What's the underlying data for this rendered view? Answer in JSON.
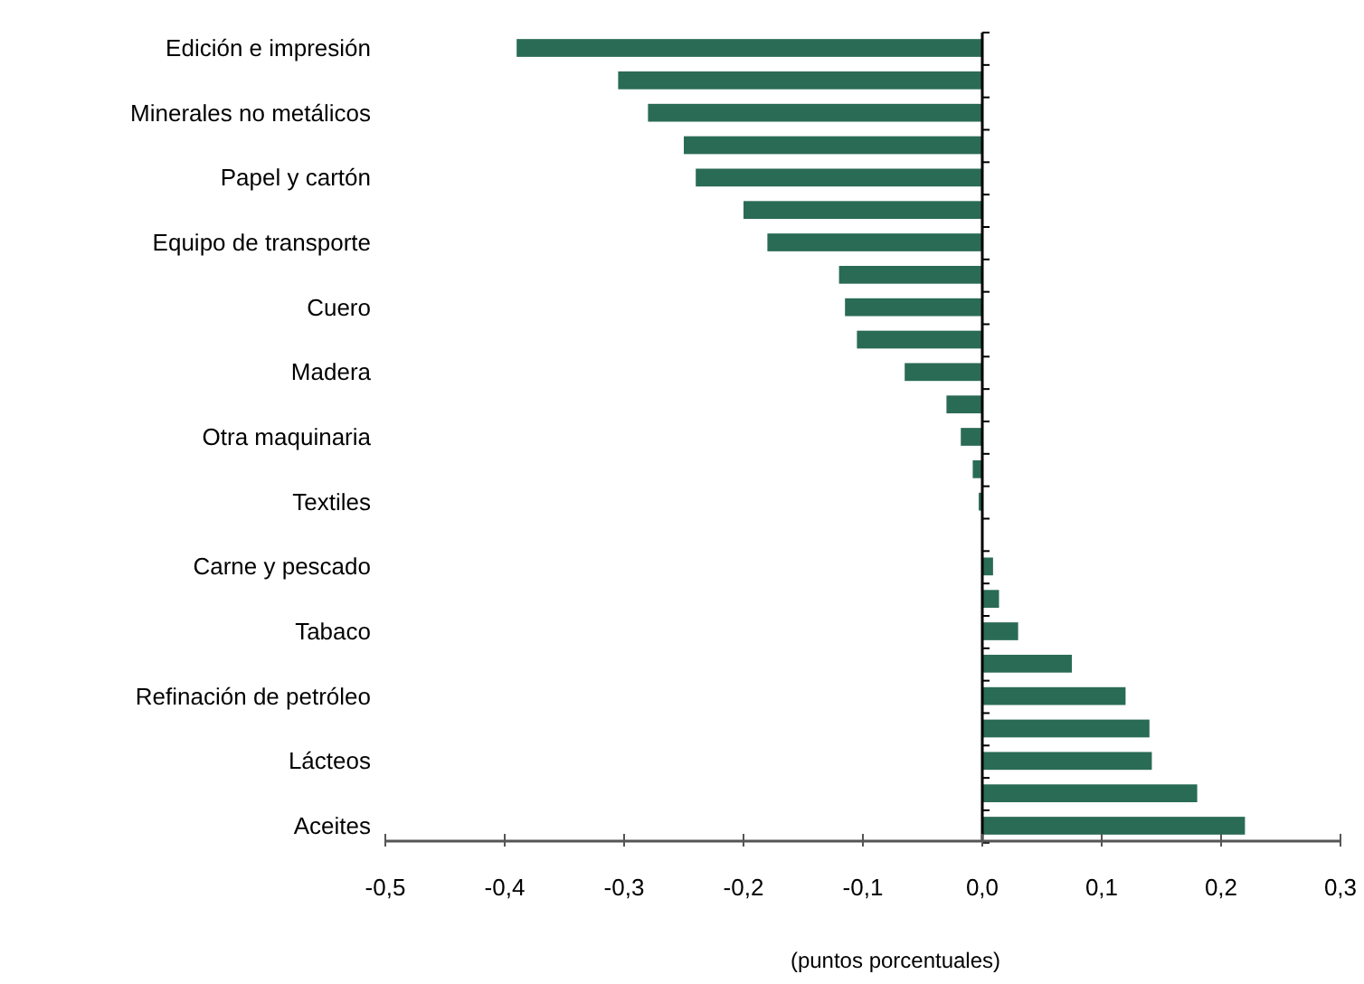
{
  "chart_data": {
    "type": "bar",
    "orientation": "horizontal",
    "xlabel": "(puntos porcentuales)",
    "categories": [
      "Edición e impresión",
      null,
      "Minerales no metálicos",
      null,
      "Papel y cartón",
      null,
      "Equipo de transporte",
      null,
      "Cuero",
      null,
      "Madera",
      null,
      "Otra maquinaria",
      null,
      "Textiles",
      null,
      "Carne y pescado",
      null,
      "Tabaco",
      null,
      "Refinación de petróleo",
      null,
      "Lácteos",
      null,
      "Aceites"
    ],
    "values": [
      -0.39,
      -0.305,
      -0.28,
      -0.25,
      -0.24,
      -0.2,
      -0.18,
      -0.12,
      -0.115,
      -0.105,
      -0.065,
      -0.03,
      -0.018,
      -0.008,
      -0.003,
      0,
      0.009,
      0.014,
      0.03,
      0.075,
      0.12,
      0.14,
      0.142,
      0.18,
      0.22
    ],
    "color": "#2a6b55",
    "xlim": [
      -0.5,
      0.3
    ],
    "xticks": [
      {
        "value": -0.5,
        "label": "-0,5"
      },
      {
        "value": -0.4,
        "label": "-0,4"
      },
      {
        "value": -0.3,
        "label": "-0,3"
      },
      {
        "value": -0.2,
        "label": "-0,2"
      },
      {
        "value": -0.1,
        "label": "-0,1"
      },
      {
        "value": 0,
        "label": "0,0"
      },
      {
        "value": 0.1,
        "label": "0,1"
      },
      {
        "value": 0.2,
        "label": "0,2"
      },
      {
        "value": 0.3,
        "label": "0,3"
      }
    ]
  }
}
